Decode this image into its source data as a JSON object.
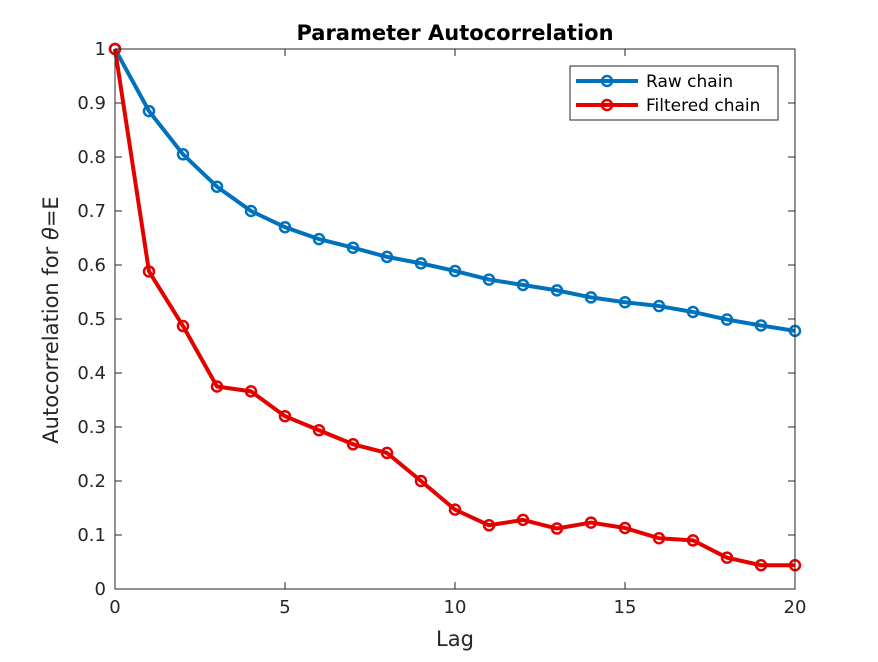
{
  "chart_data": {
    "type": "line",
    "title": "Parameter Autocorrelation",
    "xlabel": "Lag",
    "ylabel_prefix": "Autocorrelation for ",
    "ylabel_symbol": "θ",
    "ylabel_suffix": "=E",
    "xlim": [
      0,
      20
    ],
    "ylim": [
      0,
      1
    ],
    "xticks": [
      0,
      5,
      10,
      15,
      20
    ],
    "yticks": [
      0,
      0.1,
      0.2,
      0.3,
      0.4,
      0.5,
      0.6,
      0.7,
      0.8,
      0.9,
      1
    ],
    "x": [
      0,
      1,
      2,
      3,
      4,
      5,
      6,
      7,
      8,
      9,
      10,
      11,
      12,
      13,
      14,
      15,
      16,
      17,
      18,
      19,
      20
    ],
    "series": [
      {
        "name": "Raw chain",
        "color": "#0072BD",
        "values": [
          1.0,
          0.885,
          0.805,
          0.745,
          0.7,
          0.67,
          0.648,
          0.632,
          0.615,
          0.603,
          0.589,
          0.573,
          0.563,
          0.553,
          0.54,
          0.531,
          0.524,
          0.513,
          0.499,
          0.488,
          0.478
        ]
      },
      {
        "name": "Filtered chain",
        "color": "#E50000",
        "values": [
          1.0,
          0.588,
          0.487,
          0.375,
          0.366,
          0.32,
          0.294,
          0.268,
          0.252,
          0.2,
          0.147,
          0.118,
          0.128,
          0.112,
          0.123,
          0.113,
          0.094,
          0.09,
          0.058,
          0.044,
          0.044
        ]
      }
    ],
    "grid": false,
    "legend": "top-right"
  }
}
